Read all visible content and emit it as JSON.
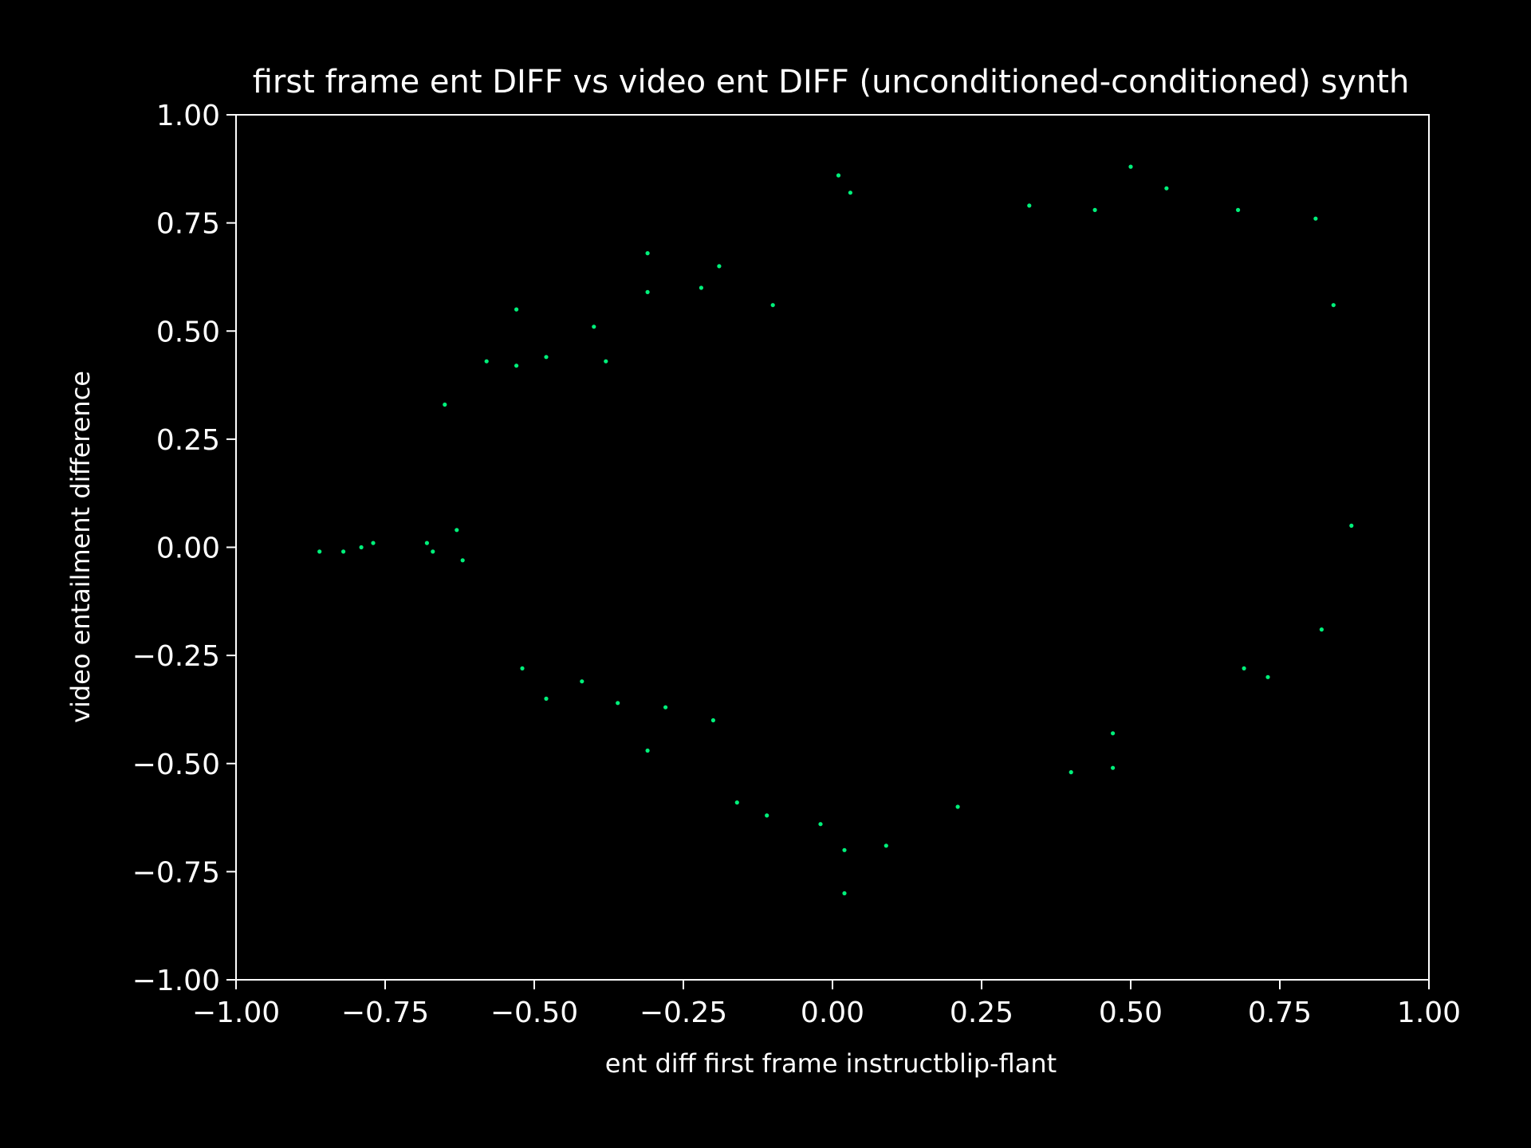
{
  "chart_data": {
    "type": "scatter",
    "title": "first frame ent DIFF vs video ent DIFF (unconditioned-conditioned) synth",
    "xlabel": "ent diff first frame instructblip-flant",
    "ylabel": "video entailment difference",
    "xlim": [
      -1.0,
      1.0
    ],
    "ylim": [
      -1.0,
      1.0
    ],
    "xticks": [
      "−1.00",
      "−0.75",
      "−0.50",
      "−0.25",
      "0.00",
      "0.25",
      "0.50",
      "0.75",
      "1.00"
    ],
    "yticks": [
      "−1.00",
      "−0.75",
      "−0.50",
      "−0.25",
      "0.00",
      "0.25",
      "0.50",
      "0.75",
      "1.00"
    ],
    "grid": false,
    "background": "#000000",
    "point_color": "#00f07a",
    "series": [
      {
        "points": [
          [
            -0.86,
            -0.01
          ],
          [
            -0.82,
            -0.01
          ],
          [
            -0.79,
            0.0
          ],
          [
            -0.77,
            0.01
          ],
          [
            -0.68,
            0.01
          ],
          [
            -0.67,
            -0.01
          ],
          [
            -0.65,
            0.33
          ],
          [
            -0.63,
            0.04
          ],
          [
            -0.62,
            -0.03
          ],
          [
            -0.58,
            0.43
          ],
          [
            -0.53,
            0.55
          ],
          [
            -0.53,
            0.42
          ],
          [
            -0.48,
            0.44
          ],
          [
            -0.52,
            -0.28
          ],
          [
            -0.48,
            -0.35
          ],
          [
            -0.4,
            0.51
          ],
          [
            -0.38,
            0.43
          ],
          [
            -0.31,
            0.68
          ],
          [
            -0.31,
            0.59
          ],
          [
            -0.31,
            -0.47
          ],
          [
            -0.28,
            -0.37
          ],
          [
            -0.36,
            -0.36
          ],
          [
            -0.42,
            -0.31
          ],
          [
            -0.2,
            -0.4
          ],
          [
            -0.16,
            -0.59
          ],
          [
            -0.11,
            -0.62
          ],
          [
            -0.02,
            -0.64
          ],
          [
            0.02,
            -0.7
          ],
          [
            0.02,
            -0.8
          ],
          [
            0.09,
            -0.69
          ],
          [
            0.21,
            -0.6
          ],
          [
            0.01,
            0.86
          ],
          [
            0.03,
            0.82
          ],
          [
            0.5,
            0.88
          ],
          [
            0.56,
            0.83
          ],
          [
            0.4,
            -0.52
          ],
          [
            0.47,
            -0.51
          ],
          [
            0.47,
            -0.43
          ],
          [
            0.69,
            -0.28
          ],
          [
            0.73,
            -0.3
          ],
          [
            0.82,
            -0.19
          ],
          [
            0.87,
            0.05
          ],
          [
            0.84,
            0.56
          ],
          [
            0.81,
            0.76
          ],
          [
            0.68,
            0.78
          ],
          [
            0.44,
            0.78
          ],
          [
            0.33,
            0.79
          ],
          [
            -0.1,
            0.56
          ],
          [
            -0.22,
            0.6
          ],
          [
            -0.19,
            0.65
          ]
        ]
      }
    ]
  }
}
